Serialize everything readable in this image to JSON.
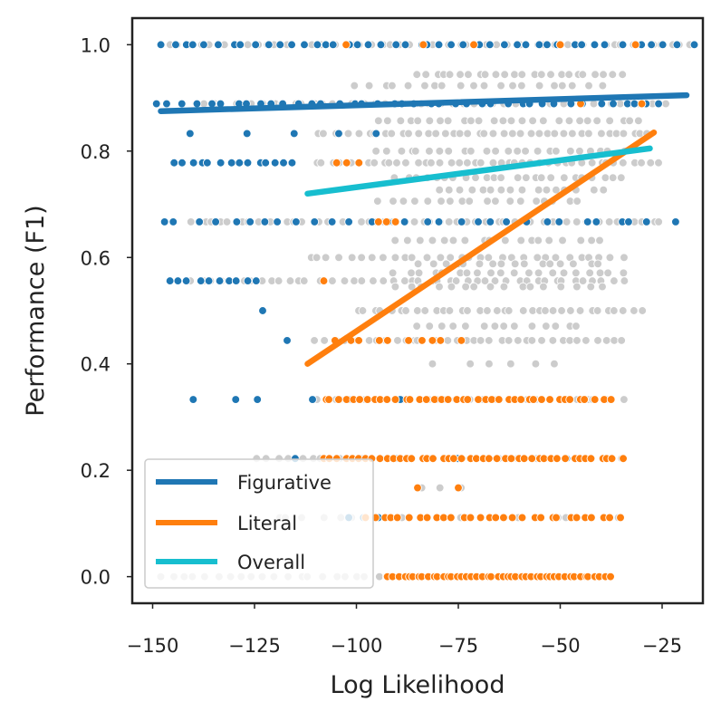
{
  "chart_data": {
    "type": "scatter",
    "title": "",
    "xlabel": "Log Likelihood",
    "ylabel": "Performance (F1)",
    "xlim": [
      -155,
      -15
    ],
    "ylim": [
      -0.05,
      1.05
    ],
    "xticks": [
      -150,
      -125,
      -100,
      -75,
      -50,
      -25
    ],
    "xtick_labels": [
      "−150",
      "−125",
      "−100",
      "−75",
      "−50",
      "−25"
    ],
    "yticks": [
      0.0,
      0.2,
      0.4,
      0.6,
      0.8,
      1.0
    ],
    "ytick_labels": [
      "0.0",
      "0.2",
      "0.4",
      "0.6",
      "0.8",
      "1.0"
    ],
    "grid": false,
    "legend_location": "lower-left",
    "colors": {
      "Figurative": "#1f77b4",
      "Literal": "#ff7f0e",
      "Overall": "#17becf",
      "points_overall": "#cccccc",
      "axis": "#222222",
      "background": "#ffffff"
    },
    "lines": [
      {
        "name": "Figurative",
        "x": [
          -148,
          -19
        ],
        "y": [
          0.875,
          0.905
        ]
      },
      {
        "name": "Literal",
        "x": [
          -112,
          -27
        ],
        "y": [
          0.4,
          0.835
        ]
      },
      {
        "name": "Overall",
        "x": [
          -112,
          -28
        ],
        "y": [
          0.72,
          0.805
        ]
      }
    ],
    "scatter_series": [
      {
        "name": "Overall-points",
        "color": "#cccccc",
        "y_levels": [
          {
            "y": 1.0,
            "x_min": -146,
            "x_max": -18,
            "n": 55
          },
          {
            "y": 0.944,
            "x_min": -85,
            "x_max": -35,
            "n": 24
          },
          {
            "y": 0.923,
            "x_min": -100,
            "x_max": -40,
            "n": 20
          },
          {
            "y": 0.889,
            "x_min": -140,
            "x_max": -25,
            "n": 48
          },
          {
            "y": 0.857,
            "x_min": -95,
            "x_max": -30,
            "n": 26
          },
          {
            "y": 0.833,
            "x_min": -110,
            "x_max": -28,
            "n": 40
          },
          {
            "y": 0.8,
            "x_min": -95,
            "x_max": -35,
            "n": 24
          },
          {
            "y": 0.778,
            "x_min": -110,
            "x_max": -26,
            "n": 42
          },
          {
            "y": 0.75,
            "x_min": -90,
            "x_max": -35,
            "n": 24
          },
          {
            "y": 0.727,
            "x_min": -80,
            "x_max": -40,
            "n": 16
          },
          {
            "y": 0.706,
            "x_min": -95,
            "x_max": -45,
            "n": 18
          },
          {
            "y": 0.667,
            "x_min": -140,
            "x_max": -25,
            "n": 52
          },
          {
            "y": 0.632,
            "x_min": -90,
            "x_max": -40,
            "n": 18
          },
          {
            "y": 0.6,
            "x_min": -112,
            "x_max": -35,
            "n": 30
          },
          {
            "y": 0.588,
            "x_min": -85,
            "x_max": -40,
            "n": 16
          },
          {
            "y": 0.571,
            "x_min": -90,
            "x_max": -35,
            "n": 20
          },
          {
            "y": 0.556,
            "x_min": -140,
            "x_max": -35,
            "n": 46
          },
          {
            "y": 0.545,
            "x_min": -90,
            "x_max": -40,
            "n": 16
          },
          {
            "y": 0.5,
            "x_min": -100,
            "x_max": -30,
            "n": 34
          },
          {
            "y": 0.471,
            "x_min": -85,
            "x_max": -45,
            "n": 14
          },
          {
            "y": 0.444,
            "x_min": -110,
            "x_max": -35,
            "n": 36
          },
          {
            "y": 0.4,
            "x_min": -80,
            "x_max": -50,
            "n": 6
          },
          {
            "y": 0.333,
            "x_min": -110,
            "x_max": -35,
            "n": 36
          },
          {
            "y": 0.222,
            "x_min": -125,
            "x_max": -35,
            "n": 34
          },
          {
            "y": 0.167,
            "x_min": -85,
            "x_max": -75,
            "n": 3
          },
          {
            "y": 0.111,
            "x_min": -120,
            "x_max": -35,
            "n": 22
          },
          {
            "y": 0.0,
            "x_min": -148,
            "x_max": -38,
            "n": 40
          }
        ]
      },
      {
        "name": "Figurative-points",
        "color": "#1f77b4",
        "y_levels": [
          {
            "y": 1.0,
            "x_min": -148,
            "x_max": -18,
            "n": 46
          },
          {
            "y": 0.889,
            "x_min": -149,
            "x_max": -25,
            "n": 40
          },
          {
            "y": 0.833,
            "x_min": -143,
            "x_max": -93,
            "n": 5
          },
          {
            "y": 0.778,
            "x_min": -145,
            "x_max": -115,
            "n": 14
          },
          {
            "y": 0.667,
            "x_min": -148,
            "x_max": -23,
            "n": 30
          },
          {
            "y": 0.556,
            "x_min": -146,
            "x_max": -125,
            "n": 10
          },
          {
            "y": 0.5,
            "x_min": -123,
            "x_max": -123,
            "n": 1
          },
          {
            "y": 0.444,
            "x_min": -117,
            "x_max": -117,
            "n": 1
          },
          {
            "y": 0.333,
            "x_min": -142,
            "x_max": -90,
            "n": 6
          },
          {
            "y": 0.222,
            "x_min": -110,
            "x_max": -35,
            "n": 5
          },
          {
            "y": 0.111,
            "x_min": -102,
            "x_max": -95,
            "n": 3
          }
        ]
      },
      {
        "name": "Literal-points",
        "color": "#ff7f0e",
        "y_levels": [
          {
            "y": 1.0,
            "x_min": -108,
            "x_max": -30,
            "n": 5
          },
          {
            "y": 0.889,
            "x_min": -45,
            "x_max": -30,
            "n": 2
          },
          {
            "y": 0.778,
            "x_min": -105,
            "x_max": -100,
            "n": 3
          },
          {
            "y": 0.667,
            "x_min": -95,
            "x_max": -90,
            "n": 3
          },
          {
            "y": 0.556,
            "x_min": -108,
            "x_max": -108,
            "n": 1
          },
          {
            "y": 0.444,
            "x_min": -105,
            "x_max": -75,
            "n": 10
          },
          {
            "y": 0.333,
            "x_min": -108,
            "x_max": -38,
            "n": 40
          },
          {
            "y": 0.222,
            "x_min": -108,
            "x_max": -35,
            "n": 44
          },
          {
            "y": 0.167,
            "x_min": -85,
            "x_max": -75,
            "n": 2
          },
          {
            "y": 0.111,
            "x_min": -98,
            "x_max": -35,
            "n": 30
          },
          {
            "y": 0.0,
            "x_min": -92,
            "x_max": -38,
            "n": 46
          }
        ]
      }
    ]
  }
}
